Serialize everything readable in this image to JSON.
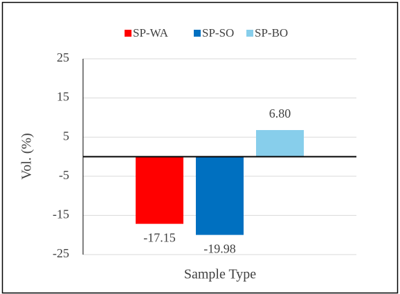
{
  "chart_data": {
    "type": "bar",
    "x_label": "Sample Type",
    "y_label": "Vol. (%)",
    "categories": [
      null
    ],
    "series": [
      {
        "name": "SP-WA",
        "color": "#ff0000",
        "values": [
          -17.15
        ],
        "value_labels": [
          "-17.15"
        ]
      },
      {
        "name": "SP-SO",
        "color": "#0070c0",
        "values": [
          -19.98
        ],
        "value_labels": [
          "-19.98"
        ]
      },
      {
        "name": "SP-BO",
        "color": "#87ceeb",
        "values": [
          6.8
        ],
        "value_labels": [
          "6.80"
        ]
      }
    ],
    "ylim": [
      -25,
      25
    ],
    "yticks": [
      -25,
      -15,
      -5,
      5,
      15,
      25
    ],
    "grid": true,
    "legend": "top"
  }
}
